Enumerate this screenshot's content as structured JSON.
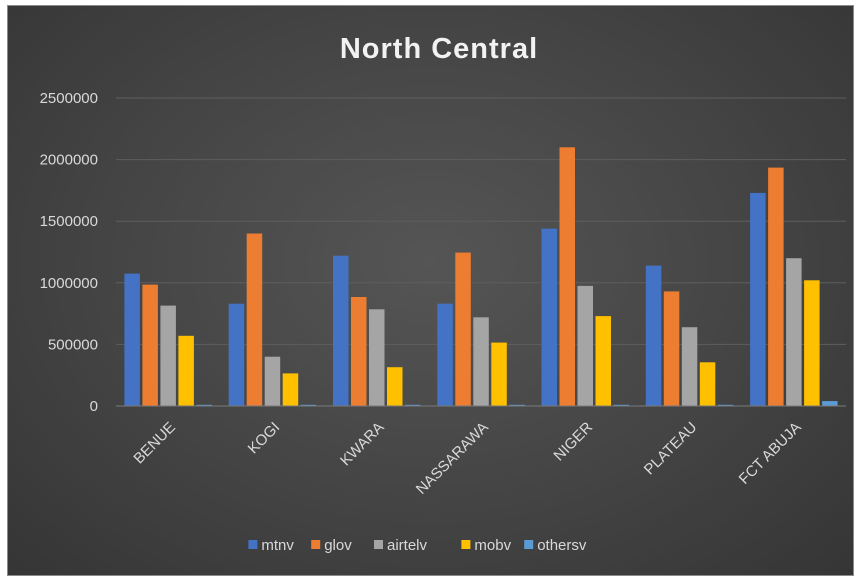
{
  "chart_data": {
    "type": "bar",
    "title": "North Central",
    "xlabel": "",
    "ylabel": "",
    "ylim": [
      0,
      2500000
    ],
    "yticks": [
      0,
      500000,
      1000000,
      1500000,
      2000000,
      2500000
    ],
    "grid": true,
    "legend_position": "bottom",
    "categories": [
      "BENUE",
      "KOGI",
      "KWARA",
      "NASSARAWA",
      "NIGER",
      "PLATEAU",
      "FCT ABUJA"
    ],
    "series": [
      {
        "name": "mtnv",
        "color": "#4472c4",
        "values": [
          1075000,
          830000,
          1220000,
          830000,
          1440000,
          1140000,
          1730000
        ]
      },
      {
        "name": "glov",
        "color": "#ed7d31",
        "values": [
          985000,
          1400000,
          885000,
          1245000,
          2100000,
          930000,
          1935000
        ]
      },
      {
        "name": "airtelv",
        "color": "#a5a5a5",
        "values": [
          815000,
          400000,
          785000,
          720000,
          975000,
          640000,
          1200000
        ]
      },
      {
        "name": "mobv",
        "color": "#ffc000",
        "values": [
          570000,
          265000,
          315000,
          515000,
          730000,
          355000,
          1020000
        ]
      },
      {
        "name": "othersv",
        "color": "#5b9bd5",
        "values": [
          5000,
          5000,
          5000,
          5000,
          5000,
          5000,
          40000
        ]
      }
    ]
  }
}
